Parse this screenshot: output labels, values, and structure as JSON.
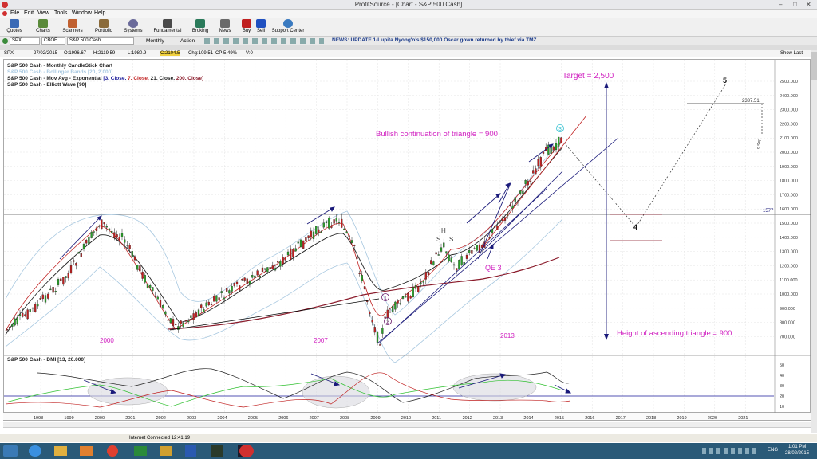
{
  "window": {
    "title": "ProfitSource - [Chart - S&P 500 Cash]",
    "min": "–",
    "max": "□",
    "close": "✕"
  },
  "menu": [
    "File",
    "Edit",
    "View",
    "Tools",
    "Window",
    "Help"
  ],
  "toolbar": [
    {
      "label": "Quotes",
      "icon": "quotes-icon",
      "color": "#3a6ab5"
    },
    {
      "label": "Charts",
      "icon": "charts-icon",
      "color": "#5a8a3a"
    },
    {
      "label": "Scanners",
      "icon": "scanners-icon",
      "color": "#c06030"
    },
    {
      "label": "Portfolio",
      "icon": "portfolio-icon",
      "color": "#8a6a3a"
    },
    {
      "label": "Systems",
      "icon": "systems-icon",
      "color": "#6a6a9a"
    },
    {
      "label": "Fundamental",
      "icon": "fundamental-icon",
      "color": "#4a4a4a"
    },
    {
      "label": "Broking",
      "icon": "broking-icon",
      "color": "#2a7a5a"
    },
    {
      "label": "News",
      "icon": "news-icon",
      "color": "#6a6a6a"
    },
    {
      "label": "Buy",
      "icon": "buy-icon",
      "color": "#c02020"
    },
    {
      "label": "Sell",
      "icon": "sell-icon",
      "color": "#2050c0"
    },
    {
      "label": "Support Center",
      "icon": "support-icon",
      "color": "#3a7ac0"
    }
  ],
  "symbolbar": {
    "symbol": "SPX",
    "exchange": "CBOE",
    "name": "S&P 500 Cash",
    "period": "Monthly",
    "action": "Action",
    "news": "NEWS: UPDATE 1-Lupita Nyong'o's $150,000 Oscar gown returned by thief via TMZ"
  },
  "infobar": {
    "sym": "SPX",
    "date": "27/02/2015",
    "open": "O:1996.67",
    "high": "H:2119.59",
    "low": "L:1980.9",
    "close": "C:2104.5",
    "chg": "Chg:109.51",
    "cp": "CP:5.49%",
    "vol": "V:0",
    "show_last": "Show Last"
  },
  "legend": {
    "l1": "S&P 500 Cash - Monthly CandleStick Chart",
    "l2": "S&P 500 Cash - Bollinger Bands [20, 2.000]",
    "l3a": "S&P 500 Cash - Mov Avg - Exponential",
    "l3b": "[3, Close,",
    "l3c": "7, Close,",
    "l3d": "21, Close,",
    "l3e": "200, Close]",
    "l4": "S&P 500 Cash - Elliott Wave [90]",
    "dmi": "S&P 500 Cash - DMI [13, 20.000]"
  },
  "annotations": {
    "target": "Target = 2,500",
    "bullish": "Bullish continuation of triangle = 900",
    "height": "Height of ascending triangle = 900",
    "qe": "QE 3",
    "y2000": "2000",
    "y2007": "2007",
    "y2013": "2013",
    "h": "H",
    "s1": "S",
    "s2": "S",
    "w1": "1",
    "w2": "2",
    "w3": "3",
    "w4": "4",
    "w5": "5",
    "val2337": "2337.51",
    "val1577": "1577",
    "sep": "9 Sep"
  },
  "price_axis": [
    "2500.000",
    "2400.000",
    "2300.000",
    "2200.000",
    "2100.000",
    "2000.000",
    "1900.000",
    "1800.000",
    "1700.000",
    "1600.000",
    "1500.000",
    "1400.000",
    "1300.000",
    "1200.000",
    "1100.000",
    "1000.000",
    "900.000",
    "800.000",
    "700.000"
  ],
  "dmi_axis": [
    "50",
    "40",
    "30",
    "20",
    "10"
  ],
  "x_axis": [
    "1998",
    "1999",
    "2000",
    "2001",
    "2002",
    "2003",
    "2004",
    "2005",
    "2006",
    "2007",
    "2008",
    "2009",
    "2010",
    "2011",
    "2012",
    "2013",
    "2014",
    "2015",
    "2016",
    "2017",
    "2018",
    "2019",
    "2020",
    "2021"
  ],
  "status": {
    "internet": "Internet Connected 12:41:19"
  },
  "taskbar": {
    "time": "1:01 PM",
    "date": "28/02/2015",
    "lang": "ENG"
  },
  "colors": {
    "magenta": "#d020c0",
    "navy": "#1a1a7a",
    "maroon": "#8a1a2a",
    "cyan": "#30c0d0"
  }
}
